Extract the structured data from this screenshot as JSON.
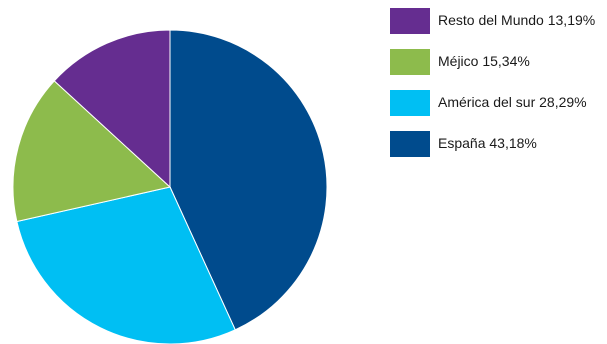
{
  "chart_data": {
    "type": "pie",
    "title": "",
    "slices": [
      {
        "label": "España 43,18%",
        "value": 43.18,
        "color": "#004b8d"
      },
      {
        "label": "América del sur  28,29%",
        "value": 28.29,
        "color": "#00bff3"
      },
      {
        "label": "Méjico  15,34%",
        "value": 15.34,
        "color": "#8dbb4c"
      },
      {
        "label": "Resto del Mundo  13,19%",
        "value": 13.19,
        "color": "#652d90"
      }
    ],
    "legend": {
      "placement": "top-right",
      "order": [
        3,
        2,
        1,
        0
      ]
    }
  }
}
